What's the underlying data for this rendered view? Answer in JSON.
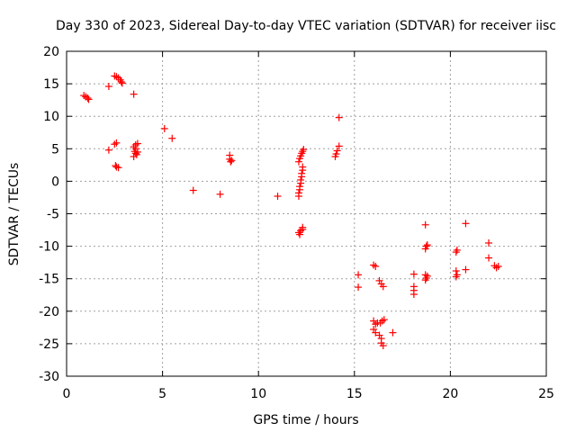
{
  "chart_data": {
    "type": "scatter",
    "title": "Day 330 of 2023, Sidereal Day-to-day VTEC variation (SDTVAR) for receiver iisc",
    "xlabel": "GPS time / hours",
    "ylabel": "SDTVAR / TECUs",
    "xlim": [
      0,
      25
    ],
    "ylim": [
      -30,
      20
    ],
    "xticks": [
      0,
      5,
      10,
      15,
      20,
      25
    ],
    "yticks": [
      -30,
      -25,
      -20,
      -15,
      -10,
      -5,
      0,
      5,
      10,
      15,
      20
    ],
    "grid": true,
    "marker": "+",
    "color": "#ff0000",
    "series": [
      {
        "name": "SDTVAR",
        "points": [
          [
            0.9,
            13.2
          ],
          [
            1.0,
            13.0
          ],
          [
            1.1,
            12.8
          ],
          [
            1.15,
            12.6
          ],
          [
            2.2,
            14.6
          ],
          [
            2.2,
            4.8
          ],
          [
            2.5,
            16.2
          ],
          [
            2.6,
            16.1
          ],
          [
            2.7,
            15.9
          ],
          [
            2.8,
            15.6
          ],
          [
            2.9,
            15.1
          ],
          [
            2.85,
            15.3
          ],
          [
            2.5,
            5.7
          ],
          [
            2.6,
            5.9
          ],
          [
            2.55,
            2.4
          ],
          [
            2.6,
            2.2
          ],
          [
            2.7,
            2.1
          ],
          [
            3.5,
            13.4
          ],
          [
            3.5,
            5.3
          ],
          [
            3.6,
            5.6
          ],
          [
            3.7,
            5.8
          ],
          [
            3.55,
            4.6
          ],
          [
            3.6,
            4.3
          ],
          [
            3.65,
            4.1
          ],
          [
            3.5,
            3.8
          ],
          [
            3.7,
            4.5
          ],
          [
            3.6,
            5.0
          ],
          [
            5.1,
            8.1
          ],
          [
            5.5,
            6.6
          ],
          [
            6.6,
            -1.4
          ],
          [
            8.0,
            -2.0
          ],
          [
            8.5,
            4.0
          ],
          [
            8.5,
            3.4
          ],
          [
            8.55,
            3.0
          ],
          [
            8.6,
            3.2
          ],
          [
            11.0,
            -2.3
          ],
          [
            12.1,
            -2.3
          ],
          [
            12.1,
            -1.8
          ],
          [
            12.15,
            -1.3
          ],
          [
            12.15,
            -0.8
          ],
          [
            12.2,
            -0.3
          ],
          [
            12.2,
            0.2
          ],
          [
            12.25,
            0.7
          ],
          [
            12.25,
            1.2
          ],
          [
            12.3,
            1.7
          ],
          [
            12.3,
            2.2
          ],
          [
            12.1,
            3.0
          ],
          [
            12.15,
            3.5
          ],
          [
            12.2,
            3.9
          ],
          [
            12.25,
            4.3
          ],
          [
            12.3,
            4.6
          ],
          [
            12.35,
            4.9
          ],
          [
            12.1,
            -7.9
          ],
          [
            12.15,
            -8.2
          ],
          [
            12.2,
            -7.6
          ],
          [
            12.3,
            -7.4
          ],
          [
            12.3,
            -7.1
          ],
          [
            14.0,
            3.8
          ],
          [
            14.05,
            4.2
          ],
          [
            14.1,
            4.7
          ],
          [
            14.2,
            5.4
          ],
          [
            14.2,
            9.8
          ],
          [
            15.2,
            -14.4
          ],
          [
            15.2,
            -16.3
          ],
          [
            16.0,
            -12.9
          ],
          [
            16.1,
            -13.1
          ],
          [
            16.0,
            -21.5
          ],
          [
            16.1,
            -22.0
          ],
          [
            16.0,
            -22.8
          ],
          [
            16.1,
            -23.3
          ],
          [
            16.2,
            -21.8
          ],
          [
            16.3,
            -15.3
          ],
          [
            16.4,
            -15.8
          ],
          [
            16.5,
            -16.2
          ],
          [
            16.35,
            -21.8
          ],
          [
            16.45,
            -21.5
          ],
          [
            16.55,
            -21.3
          ],
          [
            16.3,
            -23.7
          ],
          [
            16.4,
            -24.2
          ],
          [
            16.4,
            -24.9
          ],
          [
            16.5,
            -25.3
          ],
          [
            17.0,
            -23.3
          ],
          [
            18.1,
            -14.3
          ],
          [
            18.1,
            -16.2
          ],
          [
            18.1,
            -16.8
          ],
          [
            18.1,
            -17.4
          ],
          [
            18.7,
            -14.4
          ],
          [
            18.75,
            -14.9
          ],
          [
            18.8,
            -14.6
          ],
          [
            18.7,
            -15.2
          ],
          [
            18.7,
            -10.4
          ],
          [
            18.75,
            -10.0
          ],
          [
            18.8,
            -9.8
          ],
          [
            18.7,
            -6.7
          ],
          [
            20.3,
            -10.9
          ],
          [
            20.35,
            -10.6
          ],
          [
            20.3,
            -13.8
          ],
          [
            20.35,
            -14.4
          ],
          [
            20.3,
            -14.7
          ],
          [
            20.8,
            -6.5
          ],
          [
            20.8,
            -13.6
          ],
          [
            22.0,
            -9.5
          ],
          [
            22.0,
            -11.8
          ],
          [
            22.3,
            -13.0
          ],
          [
            22.4,
            -13.3
          ],
          [
            22.5,
            -13.1
          ]
        ]
      }
    ]
  }
}
